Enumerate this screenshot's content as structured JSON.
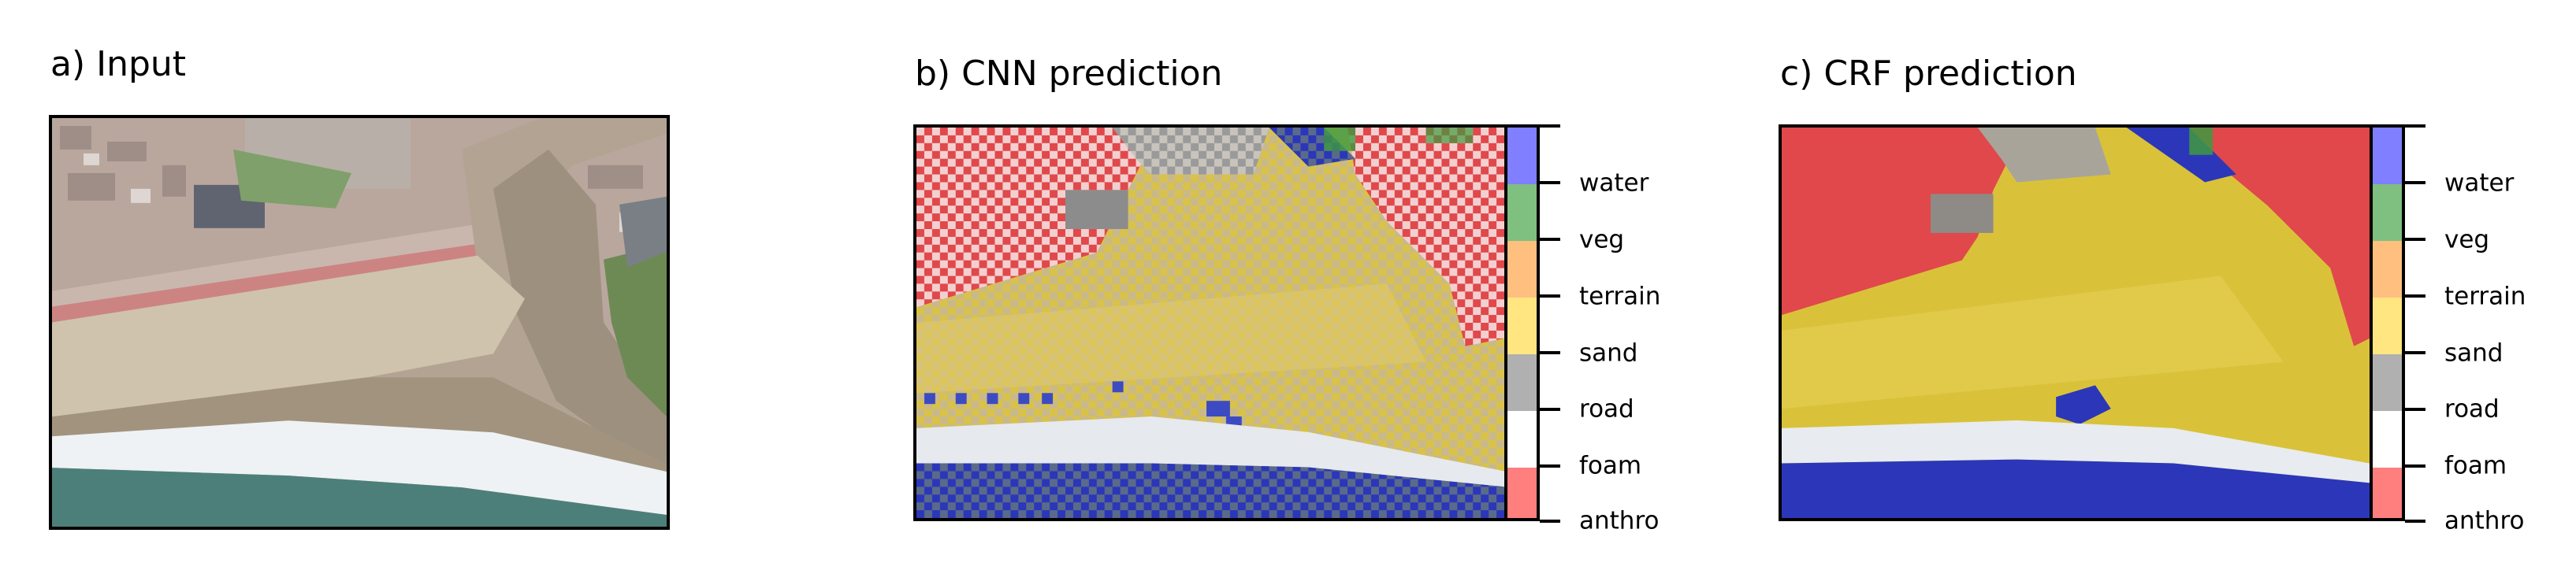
{
  "panels": [
    {
      "title": "a) Input"
    },
    {
      "title": "b) CNN prediction"
    },
    {
      "title": "c) CRF prediction"
    }
  ],
  "legend": {
    "classes": [
      {
        "label": "water",
        "color": "#7f7fff"
      },
      {
        "label": "veg",
        "color": "#7fbf7f"
      },
      {
        "label": "terrain",
        "color": "#ffbf7f"
      },
      {
        "label": "sand",
        "color": "#ffe680"
      },
      {
        "label": "road",
        "color": "#b0b0b0"
      },
      {
        "label": "foam",
        "color": "#ffffff"
      },
      {
        "label": "anthro",
        "color": "#ff7f7f"
      }
    ]
  },
  "palette": {
    "ocean": "#4d7f7a",
    "wet_sand": "#a99a86",
    "dry_sand": "#cfc3ad",
    "foam": "#eef2f4",
    "town": "#b9a8a0",
    "overlay_anthro": "#e0484b",
    "overlay_sand": "#d8c24a",
    "overlay_water": "#2b37b8",
    "overlay_road": "#9a9a9a",
    "overlay_veg": "#3f9a3f"
  }
}
